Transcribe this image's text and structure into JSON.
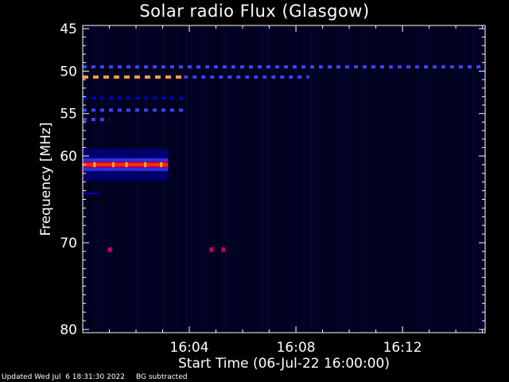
{
  "chart_data": {
    "type": "heatmap",
    "title": "Solar radio Flux (Glasgow)",
    "xlabel": "Start Time (06-Jul-22 16:00:00)",
    "ylabel": "Frequency [MHz]",
    "x_range_minutes": [
      0,
      15.1
    ],
    "y_range_mhz": [
      45,
      80
    ],
    "x_ticks": [
      {
        "label": "16:04",
        "minute": 4
      },
      {
        "label": "16:08",
        "minute": 8
      },
      {
        "label": "16:12",
        "minute": 12
      }
    ],
    "y_ticks": [
      45,
      50,
      55,
      60,
      70,
      80
    ],
    "colormap": [
      "#000020",
      "#0000c0",
      "#4040ff",
      "#c00060",
      "#ff4000",
      "#ffa040"
    ],
    "features": [
      {
        "name": "interference-line-50",
        "freq_mhz": 49.5,
        "minute_start": 0.0,
        "minute_end": 15.1,
        "intensity": 0.35,
        "dashed": true
      },
      {
        "name": "interference-line-51",
        "freq_mhz": 50.7,
        "minute_start": 0.0,
        "minute_end": 3.8,
        "intensity": 0.95,
        "dashed": true
      },
      {
        "name": "interference-line-51b",
        "freq_mhz": 50.7,
        "minute_start": 3.8,
        "minute_end": 8.5,
        "intensity": 0.3,
        "dashed": true
      },
      {
        "name": "interference-line-53",
        "freq_mhz": 53.2,
        "minute_start": 0.0,
        "minute_end": 3.8,
        "intensity": 0.15,
        "dashed": true
      },
      {
        "name": "interference-line-55",
        "freq_mhz": 54.6,
        "minute_start": 0.0,
        "minute_end": 3.8,
        "intensity": 0.35,
        "dashed": true
      },
      {
        "name": "interference-line-56",
        "freq_mhz": 55.7,
        "minute_start": 0.0,
        "minute_end": 1.0,
        "intensity": 0.3,
        "dashed": true
      },
      {
        "name": "signal-band-61",
        "freq_mhz": 61.0,
        "minute_start": 0.0,
        "minute_end": 3.2,
        "intensity": 0.85,
        "dashed": false
      },
      {
        "name": "signal-band-64",
        "freq_mhz": 64.3,
        "minute_start": 0.0,
        "minute_end": 0.6,
        "intensity": 0.1,
        "dashed": false
      },
      {
        "name": "spot-71a",
        "freq_mhz": 70.8,
        "minute_start": 0.95,
        "minute_end": 1.1,
        "intensity": 0.6,
        "dashed": false
      },
      {
        "name": "spot-71b",
        "freq_mhz": 70.8,
        "minute_start": 4.75,
        "minute_end": 4.9,
        "intensity": 0.6,
        "dashed": false
      },
      {
        "name": "spot-71c",
        "freq_mhz": 70.8,
        "minute_start": 5.2,
        "minute_end": 5.35,
        "intensity": 0.6,
        "dashed": false
      }
    ]
  },
  "footer": {
    "updated": "Updated Wed Jul  6 18:31:30 2022",
    "note": "BG subtracted"
  }
}
